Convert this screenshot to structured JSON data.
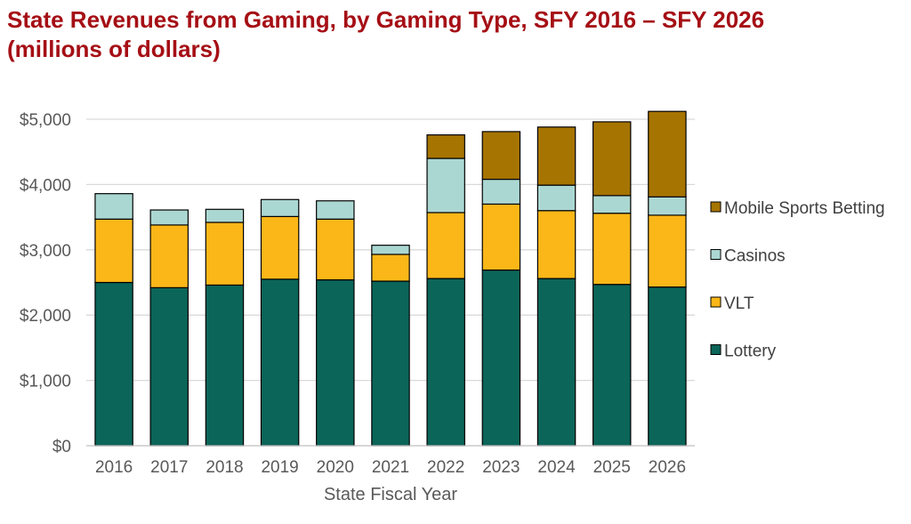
{
  "chart_data": {
    "type": "bar",
    "stacked": true,
    "title_lines": [
      "State Revenues from Gaming, by Gaming Type, SFY 2016 – SFY 2026",
      "(millions of dollars)"
    ],
    "xlabel": "State Fiscal Year",
    "ylabel": "",
    "categories": [
      "2016",
      "2017",
      "2018",
      "2019",
      "2020",
      "2021",
      "2022",
      "2023",
      "2024",
      "2025",
      "2026"
    ],
    "ylim": [
      0,
      5000
    ],
    "yticks": [
      0,
      1000,
      2000,
      3000,
      4000,
      5000
    ],
    "ytick_labels": [
      "$0",
      "$1,000",
      "$2,000",
      "$3,000",
      "$4,000",
      "$5,000"
    ],
    "grid": true,
    "legend_position": "right",
    "series": [
      {
        "name": "Lottery",
        "color": "#0b6559",
        "values": [
          2500,
          2420,
          2460,
          2550,
          2540,
          2520,
          2560,
          2690,
          2560,
          2470,
          2430
        ]
      },
      {
        "name": "VLT",
        "color": "#fbb718",
        "values": [
          970,
          960,
          960,
          960,
          930,
          410,
          1010,
          1010,
          1040,
          1090,
          1100
        ]
      },
      {
        "name": "Casinos",
        "color": "#abd7d2",
        "values": [
          390,
          230,
          200,
          260,
          280,
          140,
          830,
          380,
          390,
          270,
          280
        ]
      },
      {
        "name": "Mobile Sports Betting",
        "color": "#a67400",
        "values": [
          0,
          0,
          0,
          0,
          0,
          0,
          360,
          730,
          890,
          1130,
          1310
        ]
      }
    ],
    "legend_order": [
      "Mobile Sports Betting",
      "Casinos",
      "VLT",
      "Lottery"
    ]
  }
}
